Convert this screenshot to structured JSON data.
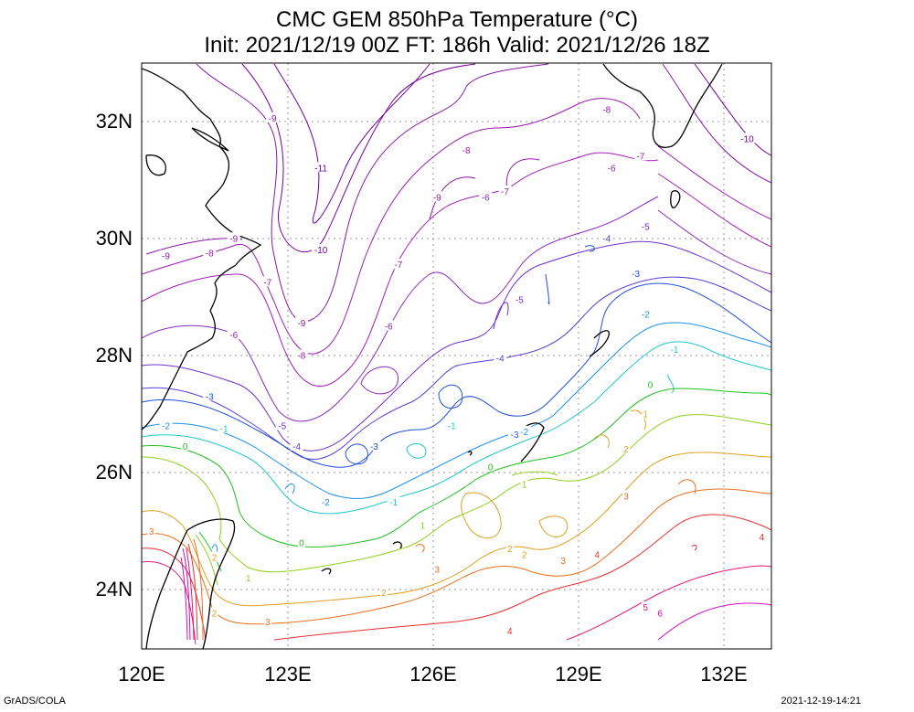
{
  "title": "CMC GEM 850hPa Temperature (°C)",
  "subtitle": "Init: 2021/12/19 00Z  FT: 186h  Valid: 2021/12/26 18Z",
  "footer_left": "GrADS/COLA",
  "footer_right": "2021-12-19-14:21",
  "axes": {
    "x_ticks": [
      "120E",
      "123E",
      "126E",
      "129E",
      "132E"
    ],
    "y_ticks": [
      "32N",
      "30N",
      "28N",
      "26N",
      "24N"
    ],
    "lon_range": [
      120,
      133
    ],
    "lat_range": [
      23,
      33
    ]
  },
  "colors": {
    "-11": "#6a0094",
    "-10": "#7a0099",
    "-9": "#8a1aa6",
    "-8": "#9b1ab0",
    "-7": "#a21ab8",
    "-6": "#8b2bc0",
    "-5": "#7030c8",
    "-4": "#5a3ad0",
    "-3": "#2050e0",
    "-2": "#1e90f0",
    "-1": "#20c8c8",
    "0": "#20c020",
    "1": "#90d020",
    "2": "#e0a020",
    "3": "#e87020",
    "4": "#e83030",
    "5": "#e01878",
    "6": "#d010c0"
  },
  "contour_labels": [
    {
      "lon": 122.7,
      "lat": 32.05,
      "text": "-9",
      "level": "-9"
    },
    {
      "lon": 123.7,
      "lat": 31.2,
      "text": "-11",
      "level": "-11"
    },
    {
      "lon": 126.7,
      "lat": 31.5,
      "text": "-8",
      "level": "-8"
    },
    {
      "lon": 126.1,
      "lat": 30.7,
      "text": "-9",
      "level": "-9"
    },
    {
      "lon": 127.1,
      "lat": 30.7,
      "text": "-6",
      "level": "-6"
    },
    {
      "lon": 127.5,
      "lat": 30.8,
      "text": "-7",
      "level": "-7"
    },
    {
      "lon": 129.6,
      "lat": 32.2,
      "text": "-8",
      "level": "-8"
    },
    {
      "lon": 130.3,
      "lat": 31.4,
      "text": "-7",
      "level": "-7"
    },
    {
      "lon": 129.7,
      "lat": 31.2,
      "text": "-6",
      "level": "-6"
    },
    {
      "lon": 132.5,
      "lat": 31.7,
      "text": "-10",
      "level": "-10"
    },
    {
      "lon": 130.4,
      "lat": 30.2,
      "text": "-5",
      "level": "-5"
    },
    {
      "lon": 129.6,
      "lat": 30.0,
      "text": "-4",
      "level": "-4"
    },
    {
      "lon": 123.7,
      "lat": 29.8,
      "text": "-10",
      "level": "-10"
    },
    {
      "lon": 121.9,
      "lat": 30.0,
      "text": "-9",
      "level": "-9"
    },
    {
      "lon": 120.5,
      "lat": 29.7,
      "text": "-9",
      "level": "-9"
    },
    {
      "lon": 121.4,
      "lat": 29.75,
      "text": "-8",
      "level": "-8"
    },
    {
      "lon": 122.6,
      "lat": 29.25,
      "text": "-7",
      "level": "-7"
    },
    {
      "lon": 125.3,
      "lat": 29.55,
      "text": "-7",
      "level": "-7"
    },
    {
      "lon": 123.3,
      "lat": 28.55,
      "text": "-9",
      "level": "-9"
    },
    {
      "lon": 125.1,
      "lat": 28.5,
      "text": "-6",
      "level": "-6"
    },
    {
      "lon": 121.9,
      "lat": 28.35,
      "text": "-6",
      "level": "-6"
    },
    {
      "lon": 123.3,
      "lat": 28.0,
      "text": "-8",
      "level": "-8"
    },
    {
      "lon": 127.8,
      "lat": 28.95,
      "text": "-5",
      "level": "-5"
    },
    {
      "lon": 127.4,
      "lat": 27.95,
      "text": "-4",
      "level": "-4"
    },
    {
      "lon": 130.2,
      "lat": 29.4,
      "text": "-3",
      "level": "-3"
    },
    {
      "lon": 130.4,
      "lat": 28.7,
      "text": "-2",
      "level": "-2"
    },
    {
      "lon": 131.0,
      "lat": 28.1,
      "text": "-1",
      "level": "-1"
    },
    {
      "lon": 130.5,
      "lat": 27.5,
      "text": "0",
      "level": "0"
    },
    {
      "lon": 130.4,
      "lat": 27.0,
      "text": "1",
      "level": "1"
    },
    {
      "lon": 121.4,
      "lat": 27.3,
      "text": "-3",
      "level": "-3"
    },
    {
      "lon": 120.5,
      "lat": 26.8,
      "text": "-2",
      "level": "-2"
    },
    {
      "lon": 121.7,
      "lat": 26.75,
      "text": "-1",
      "level": "-1"
    },
    {
      "lon": 120.9,
      "lat": 26.45,
      "text": "0",
      "level": "0"
    },
    {
      "lon": 122.9,
      "lat": 26.8,
      "text": "-5",
      "level": "-5"
    },
    {
      "lon": 123.2,
      "lat": 26.45,
      "text": "-4",
      "level": "-4"
    },
    {
      "lon": 124.8,
      "lat": 26.45,
      "text": "-3",
      "level": "-3"
    },
    {
      "lon": 126.4,
      "lat": 26.8,
      "text": "-1",
      "level": "-1"
    },
    {
      "lon": 127.7,
      "lat": 26.65,
      "text": "-3",
      "level": "-3"
    },
    {
      "lon": 127.9,
      "lat": 26.7,
      "text": "-2",
      "level": "-2"
    },
    {
      "lon": 127.2,
      "lat": 26.1,
      "text": "0",
      "level": "0"
    },
    {
      "lon": 127.9,
      "lat": 25.8,
      "text": "1",
      "level": "1"
    },
    {
      "lon": 130.0,
      "lat": 26.4,
      "text": "2",
      "level": "2"
    },
    {
      "lon": 130.0,
      "lat": 25.6,
      "text": "3",
      "level": "3"
    },
    {
      "lon": 123.8,
      "lat": 25.5,
      "text": "-2",
      "level": "-2"
    },
    {
      "lon": 125.2,
      "lat": 25.5,
      "text": "-1",
      "level": "-1"
    },
    {
      "lon": 125.8,
      "lat": 25.1,
      "text": "1",
      "level": "1"
    },
    {
      "lon": 123.3,
      "lat": 24.8,
      "text": "0",
      "level": "0"
    },
    {
      "lon": 127.6,
      "lat": 24.7,
      "text": "2",
      "level": "2"
    },
    {
      "lon": 127.9,
      "lat": 24.6,
      "text": "2",
      "level": "2"
    },
    {
      "lon": 128.7,
      "lat": 24.5,
      "text": "3",
      "level": "3"
    },
    {
      "lon": 129.4,
      "lat": 24.6,
      "text": "4",
      "level": "4"
    },
    {
      "lon": 132.8,
      "lat": 24.9,
      "text": "4",
      "level": "4"
    },
    {
      "lon": 126.1,
      "lat": 24.35,
      "text": "3",
      "level": "3"
    },
    {
      "lon": 125.0,
      "lat": 23.95,
      "text": "2",
      "level": "2"
    },
    {
      "lon": 122.2,
      "lat": 24.2,
      "text": "1",
      "level": "1"
    },
    {
      "lon": 121.5,
      "lat": 24.55,
      "text": "2",
      "level": "2"
    },
    {
      "lon": 120.2,
      "lat": 25.0,
      "text": "3",
      "level": "3"
    },
    {
      "lon": 121.5,
      "lat": 23.6,
      "text": "2",
      "level": "2"
    },
    {
      "lon": 122.6,
      "lat": 23.45,
      "text": "3",
      "level": "3"
    },
    {
      "lon": 127.6,
      "lat": 23.3,
      "text": "4",
      "level": "4"
    },
    {
      "lon": 130.4,
      "lat": 23.7,
      "text": "5",
      "level": "5"
    },
    {
      "lon": 130.7,
      "lat": 23.6,
      "text": "6",
      "level": "6"
    }
  ]
}
